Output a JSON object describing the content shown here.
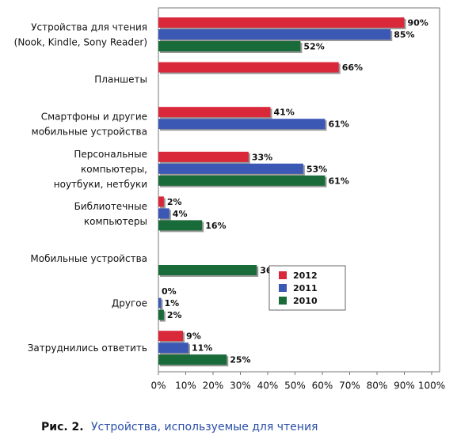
{
  "chart_data": {
    "type": "hbar",
    "caption_label": "Рис. 2.",
    "title": "Устройства, используемые для чтения",
    "categories": [
      "Устройства для чтения\n(Nook, Kindle, Sony Reader)",
      "Планшеты",
      "Смартфоны и другие\nмобильные устройства",
      "Персональные\nкомпьютеры,\nноутбуки, нетбуки",
      "Библиотечные\nкомпьютеры",
      "Мобильные устройства",
      "Другое",
      "Затруднились ответить"
    ],
    "series": [
      {
        "name": "2012",
        "color": "#d8283a",
        "values": [
          90,
          66,
          41,
          33,
          2,
          null,
          0,
          9
        ],
        "value_labels": [
          "90%",
          "66%",
          "41%",
          "33%",
          "2%",
          null,
          "0%",
          "9%"
        ]
      },
      {
        "name": "2011",
        "color": "#3b58b5",
        "values": [
          85,
          null,
          61,
          53,
          4,
          null,
          1,
          11
        ],
        "value_labels": [
          "85%",
          null,
          "61%",
          "53%",
          "4%",
          null,
          "1%",
          "11%"
        ]
      },
      {
        "name": "2010",
        "color": "#1a6b3a",
        "values": [
          52,
          null,
          null,
          61,
          16,
          36,
          2,
          25
        ],
        "value_labels": [
          "52%",
          null,
          null,
          "61%",
          "16%",
          "36%",
          "2%",
          "25%"
        ]
      }
    ],
    "xlim": [
      0,
      100
    ],
    "xticks": [
      {
        "value": 0,
        "label": "0%"
      },
      {
        "value": 10,
        "label": "10%"
      },
      {
        "value": 20,
        "label": "20%"
      },
      {
        "value": 30,
        "label": "30%"
      },
      {
        "value": 40,
        "label": "40%"
      },
      {
        "value": 50,
        "label": "50%"
      },
      {
        "value": 60,
        "label": "60%"
      },
      {
        "value": 70,
        "label": "70%"
      },
      {
        "value": 80,
        "label": "80%"
      },
      {
        "value": 90,
        "label": "90%"
      },
      {
        "value": 100,
        "label": "100%"
      }
    ],
    "legend": "lower right"
  }
}
